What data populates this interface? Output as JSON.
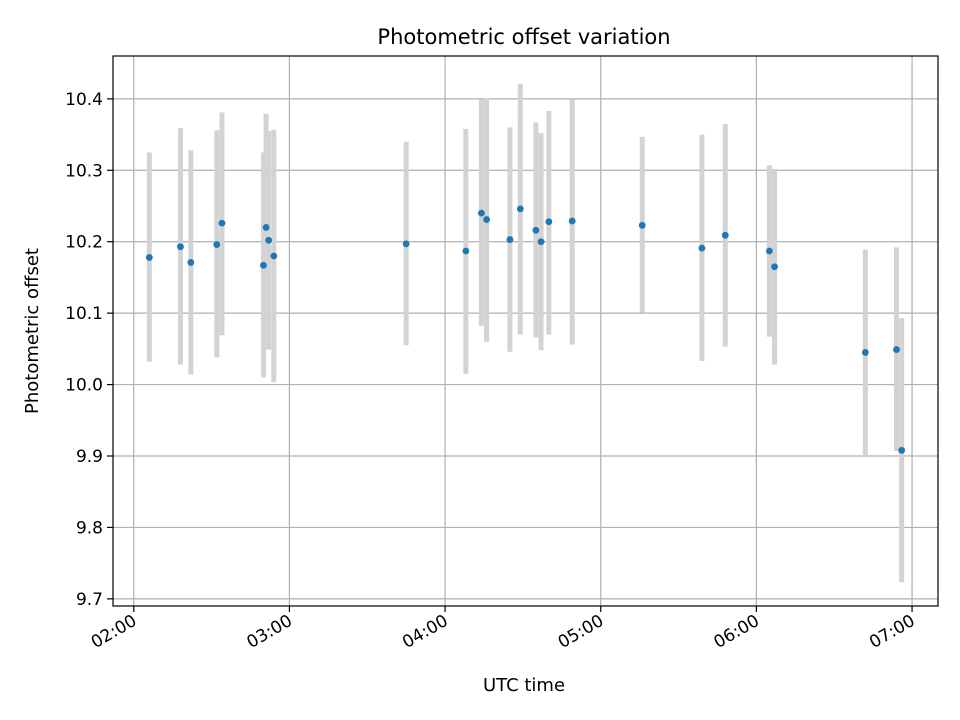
{
  "chart_data": {
    "type": "scatter",
    "title": "Photometric offset variation",
    "xlabel": "UTC time",
    "ylabel": "Photometric offset",
    "x_axis_type": "time",
    "xlim": [
      "01:52",
      "07:10"
    ],
    "ylim": [
      9.69,
      10.46
    ],
    "grid": true,
    "xticks": [
      "02:00",
      "03:00",
      "04:00",
      "05:00",
      "06:00",
      "07:00"
    ],
    "yticks": [
      9.7,
      9.8,
      9.9,
      10.0,
      10.1,
      10.2,
      10.3,
      10.4
    ],
    "ytick_labels": [
      "9.7",
      "9.8",
      "9.9",
      "10.0",
      "10.1",
      "10.2",
      "10.3",
      "10.4"
    ],
    "marker_color": "#1f77b4",
    "errorbar_color": "#d3d3d3",
    "series": [
      {
        "points": [
          {
            "x": "02:06",
            "y": 10.178,
            "ylow": 10.032,
            "yhigh": 10.325
          },
          {
            "x": "02:18",
            "y": 10.193,
            "ylow": 10.028,
            "yhigh": 10.359
          },
          {
            "x": "02:22",
            "y": 10.171,
            "ylow": 10.014,
            "yhigh": 10.328
          },
          {
            "x": "02:32",
            "y": 10.196,
            "ylow": 10.038,
            "yhigh": 10.356
          },
          {
            "x": "02:34",
            "y": 10.226,
            "ylow": 10.069,
            "yhigh": 10.381
          },
          {
            "x": "02:50",
            "y": 10.167,
            "ylow": 10.01,
            "yhigh": 10.325
          },
          {
            "x": "02:51",
            "y": 10.22,
            "ylow": 10.061,
            "yhigh": 10.379
          },
          {
            "x": "02:52",
            "y": 10.202,
            "ylow": 10.049,
            "yhigh": 10.355
          },
          {
            "x": "02:54",
            "y": 10.18,
            "ylow": 10.003,
            "yhigh": 10.357
          },
          {
            "x": "03:45",
            "y": 10.197,
            "ylow": 10.055,
            "yhigh": 10.34
          },
          {
            "x": "04:08",
            "y": 10.187,
            "ylow": 10.015,
            "yhigh": 10.358
          },
          {
            "x": "04:14",
            "y": 10.24,
            "ylow": 10.082,
            "yhigh": 10.399
          },
          {
            "x": "04:16",
            "y": 10.231,
            "ylow": 10.06,
            "yhigh": 10.401
          },
          {
            "x": "04:25",
            "y": 10.203,
            "ylow": 10.046,
            "yhigh": 10.36
          },
          {
            "x": "04:29",
            "y": 10.246,
            "ylow": 10.07,
            "yhigh": 10.421
          },
          {
            "x": "04:35",
            "y": 10.216,
            "ylow": 10.066,
            "yhigh": 10.367
          },
          {
            "x": "04:37",
            "y": 10.2,
            "ylow": 10.048,
            "yhigh": 10.352
          },
          {
            "x": "04:40",
            "y": 10.228,
            "ylow": 10.07,
            "yhigh": 10.383
          },
          {
            "x": "04:49",
            "y": 10.229,
            "ylow": 10.056,
            "yhigh": 10.399
          },
          {
            "x": "05:16",
            "y": 10.223,
            "ylow": 10.101,
            "yhigh": 10.347
          },
          {
            "x": "05:39",
            "y": 10.191,
            "ylow": 10.033,
            "yhigh": 10.35
          },
          {
            "x": "05:48",
            "y": 10.209,
            "ylow": 10.053,
            "yhigh": 10.365
          },
          {
            "x": "06:05",
            "y": 10.187,
            "ylow": 10.067,
            "yhigh": 10.307
          },
          {
            "x": "06:07",
            "y": 10.165,
            "ylow": 10.028,
            "yhigh": 10.302
          },
          {
            "x": "06:42",
            "y": 10.045,
            "ylow": 9.9,
            "yhigh": 10.189
          },
          {
            "x": "06:54",
            "y": 10.049,
            "ylow": 9.907,
            "yhigh": 10.192
          },
          {
            "x": "06:56",
            "y": 9.908,
            "ylow": 9.723,
            "yhigh": 10.093
          }
        ]
      }
    ]
  }
}
